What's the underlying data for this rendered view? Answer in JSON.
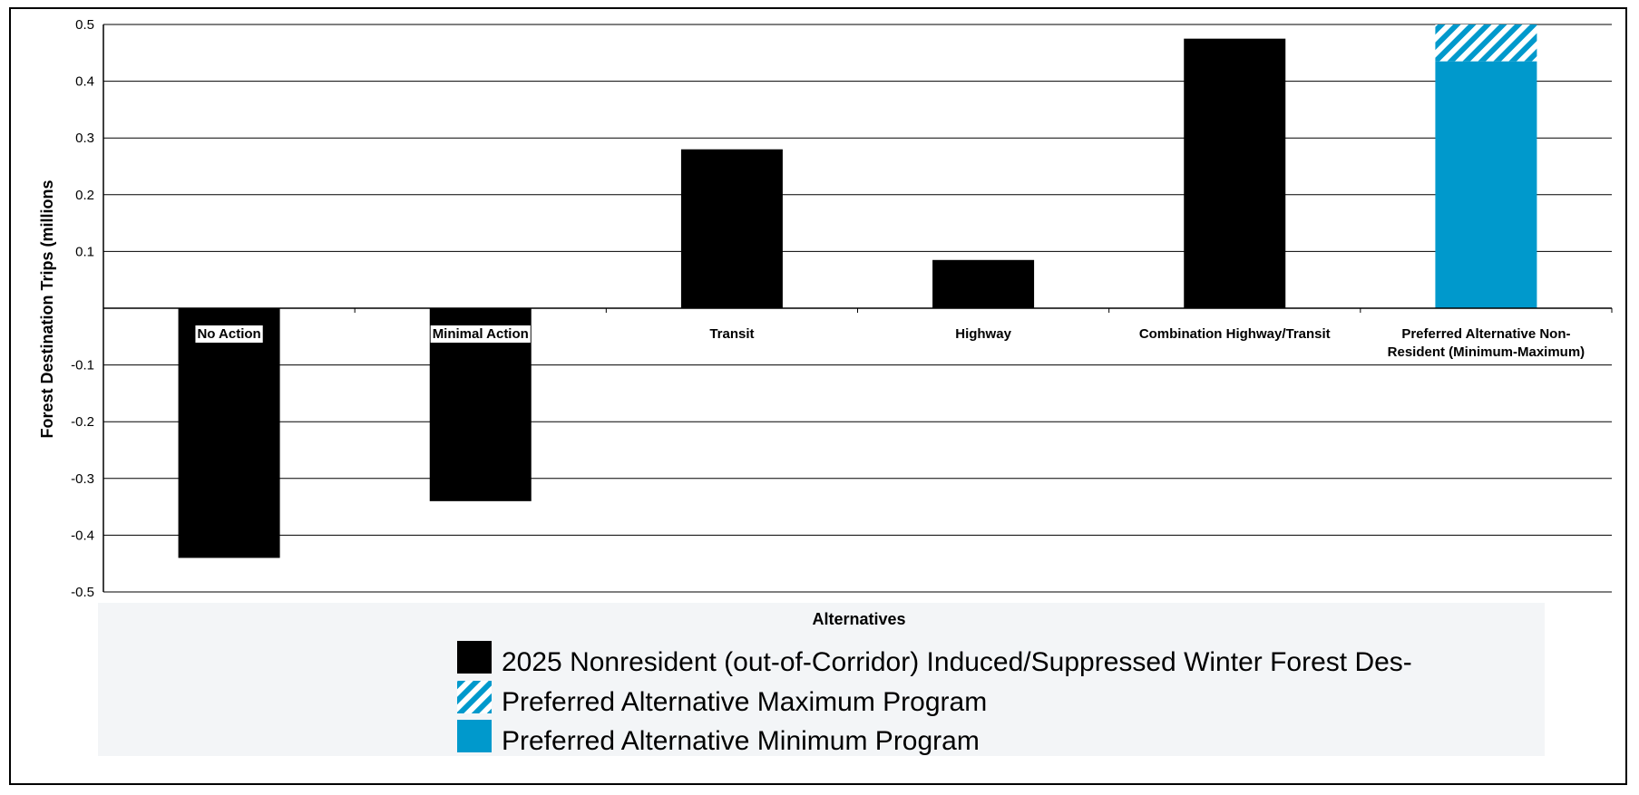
{
  "chart_data": {
    "type": "bar",
    "title": "",
    "xlabel": "Alternatives",
    "ylabel": "Forest Destination Trips (millions",
    "ylim": [
      -0.5,
      0.5
    ],
    "yticks": [
      0.5,
      0.4,
      0.3,
      0.2,
      0.1,
      -0.1,
      -0.2,
      -0.3,
      -0.4,
      -0.5
    ],
    "ytick_labels": [
      "0.5",
      "0.4",
      "0.3",
      "0.2",
      "0.1",
      "-0.1",
      "-0.2",
      "-0.3",
      "-0.4",
      "-0.5"
    ],
    "baseline": 0,
    "grid": true,
    "categories": [
      [
        "No Action"
      ],
      [
        "Minimal Action"
      ],
      [
        "Transit"
      ],
      [
        "Highway"
      ],
      [
        "Combination Highway/Transit"
      ],
      [
        "Preferred Alternative Non-",
        "Resident (Minimum-Maximum)"
      ]
    ],
    "series": [
      {
        "name": "2025 Nonresident (out-of-Corridor) Induced/Suppressed Winter Forest Des-",
        "color": "#000000",
        "pattern": "solid",
        "values": [
          -0.44,
          -0.34,
          0.28,
          0.085,
          0.475,
          null
        ]
      },
      {
        "name": "Preferred Alternative Maximum Program",
        "color": "#0099cc",
        "pattern": "hatched",
        "values": [
          null,
          null,
          null,
          null,
          null,
          0.5
        ]
      },
      {
        "name": "Preferred Alternative Minimum Program",
        "color": "#0099cc",
        "pattern": "solid",
        "values": [
          null,
          null,
          null,
          null,
          null,
          0.435
        ]
      }
    ],
    "legend_position": "bottom"
  }
}
